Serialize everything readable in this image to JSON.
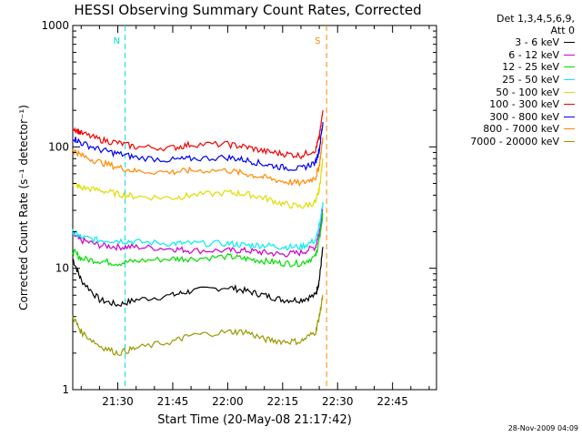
{
  "chart_data": {
    "type": "line",
    "title": "HESSI Observing Summary Count Rates, Corrected",
    "xlabel": "Start Time (20-May-08 21:17:42)",
    "ylabel": "Corrected Count Rate (s⁻¹ detector⁻¹)",
    "yscale": "log",
    "ylim": [
      1,
      1000
    ],
    "y_ticks": [
      1,
      10,
      100,
      1000
    ],
    "y_tick_labels": [
      "1",
      "10",
      "100",
      "1000"
    ],
    "xlim": [
      "21:17:42",
      "22:57:00"
    ],
    "x_ticks": [
      "21:30",
      "21:45",
      "22:00",
      "22:15",
      "22:30",
      "22:45"
    ],
    "grid": false,
    "legend_position": "right",
    "legend_header": [
      "Det 1,3,4,5,6,9,",
      "Att 0"
    ],
    "series": [
      {
        "name": "3 - 6 keV",
        "color": "#000000",
        "x": [
          "21:17:42",
          "21:20",
          "21:25",
          "21:30",
          "21:35",
          "21:45",
          "21:50",
          "22:00",
          "22:05",
          "22:10",
          "22:15",
          "22:20",
          "22:24",
          "22:25",
          "22:26"
        ],
        "y": [
          12,
          8,
          5.5,
          5,
          5.5,
          6,
          6.5,
          7,
          6.5,
          6,
          5.5,
          5.5,
          6,
          8,
          15
        ]
      },
      {
        "name": "6 - 12 keV",
        "color": "#cc00cc",
        "x": [
          "21:17:42",
          "21:20",
          "21:25",
          "21:30",
          "21:35",
          "21:45",
          "21:50",
          "22:00",
          "22:05",
          "22:10",
          "22:15",
          "22:20",
          "22:24",
          "22:25",
          "22:26"
        ],
        "y": [
          19,
          17,
          15.5,
          15,
          15,
          14.5,
          14,
          14,
          14,
          13.5,
          13,
          13.5,
          15,
          20,
          30
        ]
      },
      {
        "name": "12 - 25 keV",
        "color": "#00dd00",
        "x": [
          "21:17:42",
          "21:20",
          "21:25",
          "21:30",
          "21:35",
          "21:45",
          "21:50",
          "22:00",
          "22:05",
          "22:10",
          "22:15",
          "22:20",
          "22:24",
          "22:25",
          "22:26"
        ],
        "y": [
          14,
          12,
          11.5,
          11,
          11.5,
          12,
          12,
          12.5,
          12,
          11.5,
          11,
          11,
          12.5,
          17,
          28
        ]
      },
      {
        "name": "25 - 50 keV",
        "color": "#00eeee",
        "x": [
          "21:17:42",
          "21:20",
          "21:25",
          "21:30",
          "21:35",
          "21:45",
          "21:50",
          "22:00",
          "22:05",
          "22:10",
          "22:15",
          "22:20",
          "22:24",
          "22:25",
          "22:26"
        ],
        "y": [
          20,
          18,
          17,
          17,
          16.5,
          16,
          16,
          16,
          15.5,
          15.5,
          15,
          15,
          17,
          22,
          35
        ]
      },
      {
        "name": "50 - 100 keV",
        "color": "#dddd00",
        "x": [
          "21:17:42",
          "21:20",
          "21:25",
          "21:30",
          "21:35",
          "21:45",
          "21:50",
          "22:00",
          "22:05",
          "22:10",
          "22:15",
          "22:20",
          "22:24",
          "22:25",
          "22:26"
        ],
        "y": [
          50,
          46,
          44,
          41,
          39,
          38,
          40,
          42,
          41,
          38,
          34,
          32,
          35,
          45,
          80
        ]
      },
      {
        "name": "100 - 300 keV",
        "color": "#ee0000",
        "x": [
          "21:17:42",
          "21:20",
          "21:25",
          "21:30",
          "21:35",
          "21:45",
          "21:50",
          "22:00",
          "22:05",
          "22:10",
          "22:15",
          "22:20",
          "22:24",
          "22:25",
          "22:26"
        ],
        "y": [
          145,
          130,
          115,
          108,
          100,
          98,
          105,
          105,
          100,
          92,
          88,
          85,
          95,
          120,
          200
        ]
      },
      {
        "name": "300 - 800 keV",
        "color": "#0000ee",
        "x": [
          "21:17:42",
          "21:20",
          "21:25",
          "21:30",
          "21:35",
          "21:45",
          "21:50",
          "22:00",
          "22:05",
          "22:10",
          "22:15",
          "22:20",
          "22:24",
          "22:25",
          "22:26"
        ],
        "y": [
          120,
          108,
          95,
          88,
          82,
          78,
          80,
          82,
          78,
          72,
          68,
          66,
          75,
          95,
          160
        ]
      },
      {
        "name": "800 - 7000 keV",
        "color": "#ff8800",
        "x": [
          "21:17:42",
          "21:20",
          "21:25",
          "21:30",
          "21:35",
          "21:45",
          "21:50",
          "22:00",
          "22:05",
          "22:10",
          "22:15",
          "22:20",
          "22:24",
          "22:25",
          "22:26"
        ],
        "y": [
          95,
          85,
          75,
          68,
          63,
          62,
          64,
          64,
          60,
          56,
          52,
          50,
          56,
          70,
          120
        ]
      },
      {
        "name": "7000 - 20000 keV",
        "color": "#999900",
        "x": [
          "21:17:42",
          "21:20",
          "21:25",
          "21:30",
          "21:35",
          "21:45",
          "21:50",
          "22:00",
          "22:05",
          "22:10",
          "22:15",
          "22:20",
          "22:24",
          "22:25",
          "22:26"
        ],
        "y": [
          4,
          3,
          2.3,
          2,
          2.2,
          2.5,
          2.8,
          3,
          3,
          2.6,
          2.5,
          2.5,
          3,
          4,
          6
        ]
      }
    ],
    "annotations": [
      {
        "label": "N",
        "time": "21:32",
        "color": "#00dddd"
      },
      {
        "label": "S",
        "time": "22:27",
        "color": "#ff8800"
      }
    ],
    "footer_text": "28-Nov-2009 04:09"
  }
}
